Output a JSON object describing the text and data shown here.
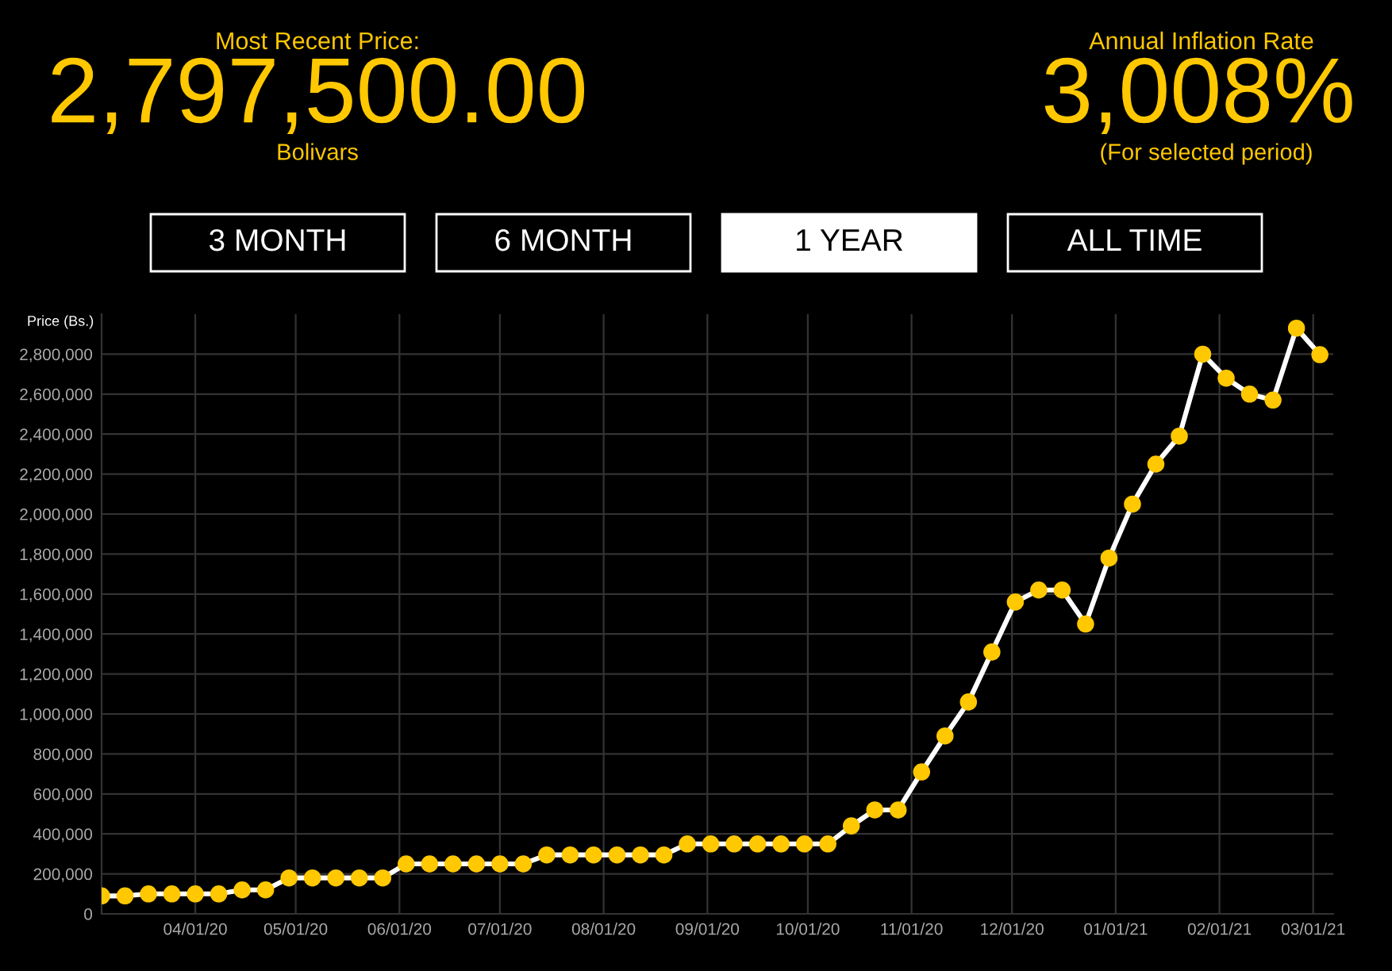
{
  "chart_data": {
    "type": "line",
    "ylabel": "Price (Bs.)",
    "annotations": [
      "Most Recent Price:",
      "2,797,500.00",
      "Bolivars",
      "Annual Inflation Rate",
      "3,008%",
      "(For selected period)",
      "3 MONTH",
      "6 MONTH",
      "1 YEAR",
      "ALL TIME"
    ],
    "x": [
      "2020-03-04",
      "2020-03-11",
      "2020-03-18",
      "2020-03-25",
      "2020-04-01",
      "2020-04-08",
      "2020-04-15",
      "2020-04-22",
      "2020-04-29",
      "2020-05-06",
      "2020-05-13",
      "2020-05-20",
      "2020-05-27",
      "2020-06-03",
      "2020-06-10",
      "2020-06-17",
      "2020-06-24",
      "2020-07-01",
      "2020-07-08",
      "2020-07-15",
      "2020-07-22",
      "2020-07-29",
      "2020-08-05",
      "2020-08-12",
      "2020-08-19",
      "2020-08-26",
      "2020-09-02",
      "2020-09-09",
      "2020-09-16",
      "2020-09-23",
      "2020-09-30",
      "2020-10-07",
      "2020-10-14",
      "2020-10-21",
      "2020-10-28",
      "2020-11-04",
      "2020-11-11",
      "2020-11-18",
      "2020-11-25",
      "2020-12-02",
      "2020-12-09",
      "2020-12-16",
      "2020-12-23",
      "2020-12-30",
      "2021-01-06",
      "2021-01-13",
      "2021-01-20",
      "2021-01-27",
      "2021-02-03",
      "2021-02-10",
      "2021-02-17",
      "2021-02-24",
      "2021-03-03"
    ],
    "series": [
      {
        "color": "#ffffff",
        "values": [
          90000,
          90000,
          100000,
          100000,
          100000,
          100000,
          120000,
          120000,
          180000,
          180000,
          180000,
          180000,
          180000,
          250000,
          250000,
          250000,
          250000,
          250000,
          250000,
          295000,
          295000,
          295000,
          295000,
          295000,
          295000,
          350000,
          350000,
          350000,
          350000,
          350000,
          350000,
          350000,
          440000,
          520000,
          520000,
          710000,
          890000,
          1060000,
          1310000,
          1560000,
          1620000,
          1620000,
          1450000,
          1780000,
          2050000,
          2250000,
          2390000,
          2800000,
          2680000,
          2600000,
          2570000,
          2930000,
          2797500
        ]
      }
    ],
    "marker": "circle",
    "xlim": [
      "2020-03-04",
      "2021-03-07"
    ],
    "xticks": [
      {
        "value": "2020-04-01",
        "label": "04/01/20"
      },
      {
        "value": "2020-05-01",
        "label": "05/01/20"
      },
      {
        "value": "2020-06-01",
        "label": "06/01/20"
      },
      {
        "value": "2020-07-01",
        "label": "07/01/20"
      },
      {
        "value": "2020-08-01",
        "label": "08/01/20"
      },
      {
        "value": "2020-09-01",
        "label": "09/01/20"
      },
      {
        "value": "2020-10-01",
        "label": "10/01/20"
      },
      {
        "value": "2020-11-01",
        "label": "11/01/20"
      },
      {
        "value": "2020-12-01",
        "label": "12/01/20"
      },
      {
        "value": "2021-01-01",
        "label": "01/01/21"
      },
      {
        "value": "2021-02-01",
        "label": "02/01/21"
      },
      {
        "value": "2021-03-01",
        "label": "03/01/21"
      }
    ],
    "ylim": [
      0,
      3000000
    ],
    "yticks": [
      0,
      {
        "value": 200000,
        "label": "200,000"
      },
      {
        "value": 400000,
        "label": "400,000"
      },
      {
        "value": 600000,
        "label": "600,000"
      },
      {
        "value": 800000,
        "label": "800,000"
      },
      {
        "value": 1000000,
        "label": "1,000,000"
      },
      {
        "value": 1200000,
        "label": "1,200,000"
      },
      {
        "value": 1400000,
        "label": "1,400,000"
      },
      {
        "value": 1600000,
        "label": "1,600,000"
      },
      {
        "value": 1800000,
        "label": "1,800,000"
      },
      {
        "value": 2000000,
        "label": "2,000,000"
      },
      {
        "value": 2200000,
        "label": "2,200,000"
      },
      {
        "value": 2400000,
        "label": "2,400,000"
      },
      {
        "value": 2600000,
        "label": "2,600,000"
      },
      {
        "value": 2800000,
        "label": "2,800,000"
      }
    ],
    "grid": true
  }
}
